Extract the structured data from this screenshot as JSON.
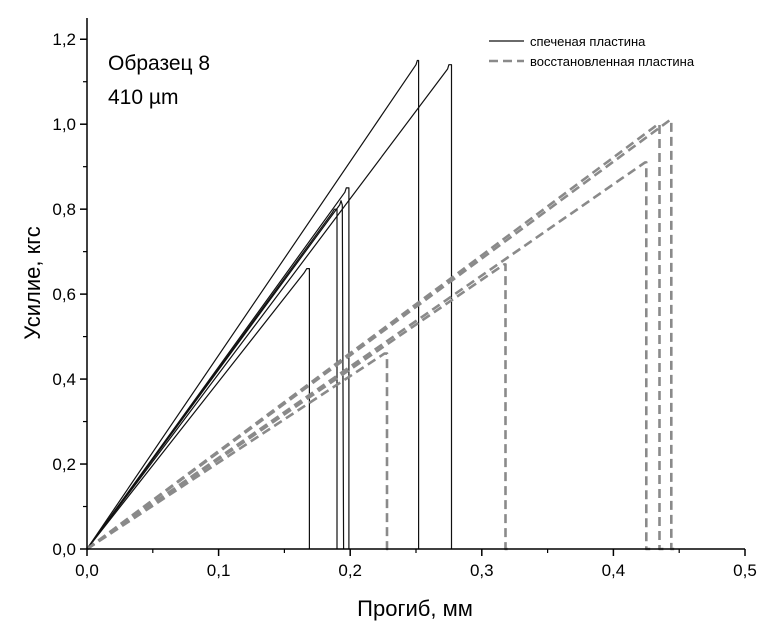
{
  "chart_data": {
    "type": "line",
    "xlabel": "Прогиб, мм",
    "ylabel": "Усилие, кгс",
    "xlim": [
      0.0,
      0.5
    ],
    "ylim": [
      0.0,
      1.25
    ],
    "x_ticks": [
      "0,0",
      "0,1",
      "0,2",
      "0,3",
      "0,4",
      "0,5"
    ],
    "y_ticks": [
      "0,0",
      "0,2",
      "0,4",
      "0,6",
      "0,8",
      "1,0",
      "1,2"
    ],
    "grid": false,
    "legend_position": "top-right",
    "annotations": [
      "Образец 8",
      "410 µm"
    ],
    "series": [
      {
        "name": "спеченая пластина",
        "style": "solid",
        "color": "#111111",
        "curves": [
          {
            "x": [
              0.0,
              0.165,
              0.167,
              0.169,
              0.169
            ],
            "y": [
              0.0,
              0.65,
              0.66,
              0.66,
              0.0
            ]
          },
          {
            "x": [
              0.0,
              0.186,
              0.188,
              0.19,
              0.19
            ],
            "y": [
              0.0,
              0.79,
              0.8,
              0.8,
              0.0
            ]
          },
          {
            "x": [
              0.0,
              0.192,
              0.193,
              0.194,
              0.195
            ],
            "y": [
              0.0,
              0.81,
              0.82,
              0.81,
              0.0
            ]
          },
          {
            "x": [
              0.0,
              0.196,
              0.197,
              0.199,
              0.199
            ],
            "y": [
              0.0,
              0.84,
              0.85,
              0.85,
              0.0
            ]
          },
          {
            "x": [
              0.0,
              0.25,
              0.251,
              0.252,
              0.252
            ],
            "y": [
              0.0,
              1.14,
              1.15,
              1.15,
              0.0
            ]
          },
          {
            "x": [
              0.0,
              0.274,
              0.275,
              0.277,
              0.277
            ],
            "y": [
              0.0,
              1.13,
              1.14,
              1.14,
              0.0
            ]
          }
        ]
      },
      {
        "name": "восстановленная пластина",
        "style": "dashed",
        "color": "#8a8a8a",
        "curves": [
          {
            "x": [
              0.0,
              0.226,
              0.228,
              0.228,
              0.23
            ],
            "y": [
              0.0,
              0.46,
              0.46,
              0.0,
              0.0
            ]
          },
          {
            "x": [
              0.0,
              0.317,
              0.318,
              0.318,
              0.322
            ],
            "y": [
              0.0,
              0.67,
              0.67,
              0.0,
              0.0
            ]
          },
          {
            "x": [
              0.0,
              0.424,
              0.425,
              0.425,
              0.428
            ],
            "y": [
              0.0,
              0.91,
              0.91,
              0.0,
              0.0
            ]
          },
          {
            "x": [
              0.0,
              0.434,
              0.435,
              0.435,
              0.438
            ],
            "y": [
              0.0,
              1.0,
              1.0,
              0.0,
              0.0
            ]
          },
          {
            "x": [
              0.0,
              0.443,
              0.444,
              0.444,
              0.448
            ],
            "y": [
              0.0,
              1.01,
              1.01,
              0.0,
              0.0
            ]
          }
        ]
      }
    ]
  }
}
